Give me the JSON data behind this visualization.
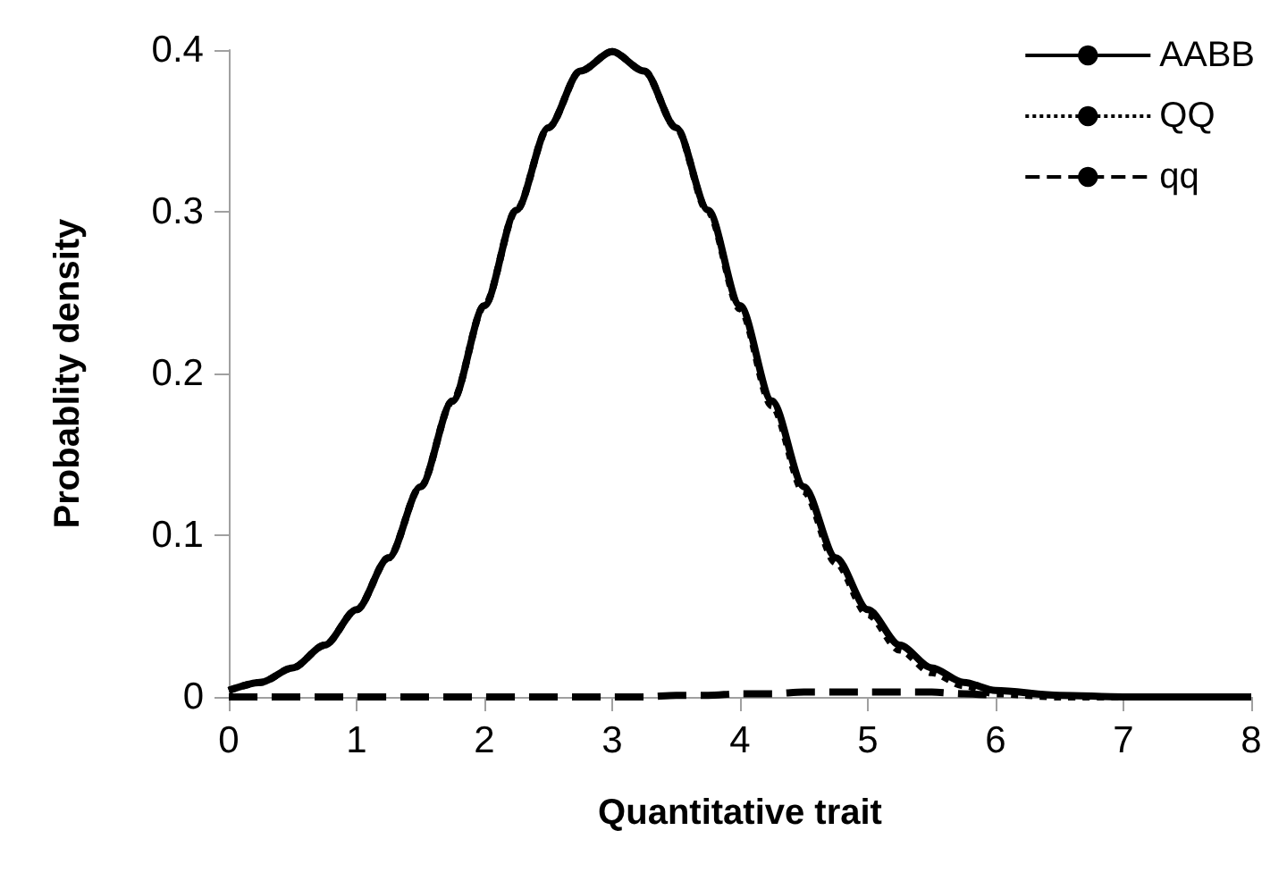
{
  "chart_data": {
    "type": "line",
    "xlabel": "Quantitative trait",
    "ylabel": "Probablity density",
    "x": [
      0,
      0.25,
      0.5,
      0.75,
      1,
      1.25,
      1.5,
      1.75,
      2,
      2.25,
      2.5,
      2.75,
      3,
      3.25,
      3.5,
      3.75,
      4,
      4.25,
      4.5,
      4.75,
      5,
      5.25,
      5.5,
      5.75,
      6,
      6.5,
      7,
      7.5,
      8
    ],
    "series": [
      {
        "name": "AABB",
        "color": "#000000",
        "line_style": "solid",
        "values": [
          0.004,
          0.009,
          0.018,
          0.032,
          0.054,
          0.086,
          0.13,
          0.183,
          0.242,
          0.301,
          0.352,
          0.387,
          0.399,
          0.387,
          0.352,
          0.301,
          0.242,
          0.183,
          0.13,
          0.086,
          0.054,
          0.032,
          0.018,
          0.009,
          0.004,
          0.001,
          0,
          0,
          0
        ]
      },
      {
        "name": "QQ",
        "color": "#000000",
        "line_style": "dotted",
        "values": [
          0.004,
          0.009,
          0.018,
          0.032,
          0.054,
          0.086,
          0.13,
          0.183,
          0.242,
          0.301,
          0.352,
          0.387,
          0.399,
          0.387,
          0.352,
          0.3,
          0.24,
          0.18,
          0.127,
          0.083,
          0.051,
          0.029,
          0.015,
          0.007,
          0.002,
          0,
          0,
          0,
          0
        ]
      },
      {
        "name": "qq",
        "color": "#000000",
        "line_style": "dashed",
        "values": [
          0,
          0,
          0,
          0,
          0,
          0,
          0,
          0,
          0,
          0,
          0,
          0,
          0,
          0,
          0.001,
          0.001,
          0.002,
          0.002,
          0.003,
          0.003,
          0.003,
          0.003,
          0.003,
          0.002,
          0.001,
          null,
          null,
          null,
          null
        ]
      }
    ],
    "xlim": [
      0,
      8
    ],
    "xticks": [
      0,
      1,
      2,
      3,
      4,
      5,
      6,
      7,
      8
    ],
    "ylim": [
      0,
      0.4
    ],
    "yticks": [
      0,
      0.1,
      0.2,
      0.3,
      0.4
    ],
    "grid": false,
    "legend": "top right",
    "marker": "none"
  }
}
